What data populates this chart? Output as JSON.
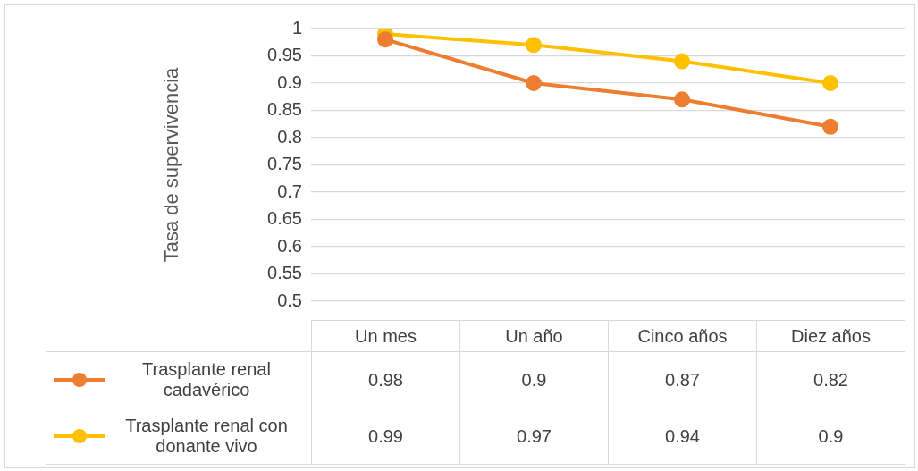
{
  "chart_data": {
    "type": "line",
    "ylabel": "Tasa de supervivencia",
    "categories": [
      "Un mes",
      "Un año",
      "Cinco años",
      "Diez años"
    ],
    "series": [
      {
        "name": "Trasplante renal cadavérico",
        "color": "#ed7d31",
        "values": [
          0.98,
          0.9,
          0.87,
          0.82
        ]
      },
      {
        "name": "Trasplante renal con donante vivo",
        "color": "#ffc000",
        "values": [
          0.99,
          0.97,
          0.94,
          0.9
        ]
      }
    ],
    "ylim": [
      0.5,
      1
    ],
    "yticks": [
      0.5,
      0.55,
      0.6,
      0.65,
      0.7,
      0.75,
      0.8,
      0.85,
      0.9,
      0.95,
      1
    ],
    "grid": "y",
    "marker": "circle",
    "line_style": "solid",
    "legend": "bottom left",
    "data_labels": true
  }
}
